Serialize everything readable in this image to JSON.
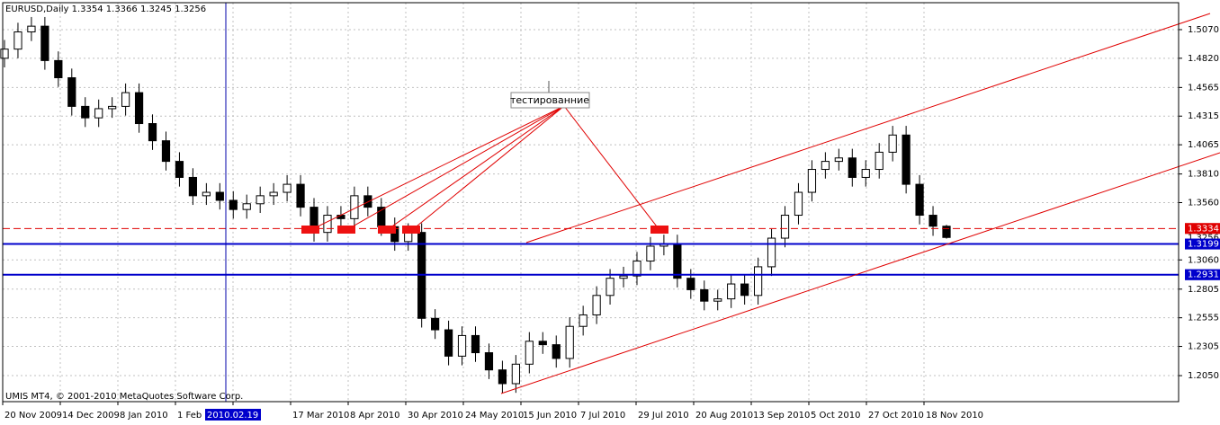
{
  "chart_data": {
    "type": "candlestick",
    "title": "EURUSD,Daily  1.3354 1.3366 1.3245 1.3256",
    "footer": "UMIS MT4, © 2001-2010 MetaQuotes Software Corp.",
    "crosshair_label": "2010.02.19 20:00",
    "annotation": "тестированние",
    "open": [
      1.482,
      1.49,
      1.505,
      1.51,
      1.48,
      1.465,
      1.44,
      1.43,
      1.438,
      1.44,
      1.452,
      1.425,
      1.41,
      1.392,
      1.378,
      1.362,
      1.365,
      1.358,
      1.35,
      1.355,
      1.362,
      1.365,
      1.372,
      1.352,
      1.33,
      1.345,
      1.342,
      1.362,
      1.352,
      1.335,
      1.322,
      1.33,
      1.255,
      1.245,
      1.222,
      1.24,
      1.225,
      1.21,
      1.198,
      1.215,
      1.235,
      1.232,
      1.22,
      1.248,
      1.258,
      1.275,
      1.29,
      1.292,
      1.305,
      1.318,
      1.32,
      1.29,
      1.28,
      1.27,
      1.272,
      1.285,
      1.275,
      1.3,
      1.325,
      1.345,
      1.365,
      1.385,
      1.392,
      1.395,
      1.378,
      1.385,
      1.4,
      1.415,
      1.372,
      1.345,
      1.3354
    ],
    "high": [
      1.498,
      1.513,
      1.518,
      1.518,
      1.488,
      1.473,
      1.448,
      1.446,
      1.448,
      1.46,
      1.46,
      1.433,
      1.418,
      1.4,
      1.386,
      1.373,
      1.373,
      1.366,
      1.363,
      1.37,
      1.373,
      1.38,
      1.38,
      1.36,
      1.353,
      1.353,
      1.37,
      1.37,
      1.36,
      1.343,
      1.338,
      1.338,
      1.263,
      1.253,
      1.248,
      1.248,
      1.233,
      1.218,
      1.223,
      1.243,
      1.243,
      1.24,
      1.256,
      1.266,
      1.283,
      1.298,
      1.3,
      1.313,
      1.326,
      1.328,
      1.328,
      1.298,
      1.288,
      1.28,
      1.293,
      1.293,
      1.308,
      1.333,
      1.353,
      1.373,
      1.393,
      1.4,
      1.403,
      1.403,
      1.393,
      1.408,
      1.423,
      1.423,
      1.38,
      1.353,
      1.3366
    ],
    "low": [
      1.474,
      1.482,
      1.497,
      1.472,
      1.457,
      1.432,
      1.422,
      1.422,
      1.43,
      1.432,
      1.417,
      1.402,
      1.384,
      1.37,
      1.354,
      1.354,
      1.35,
      1.342,
      1.342,
      1.347,
      1.354,
      1.357,
      1.344,
      1.322,
      1.322,
      1.334,
      1.334,
      1.344,
      1.327,
      1.314,
      1.314,
      1.247,
      1.237,
      1.214,
      1.214,
      1.217,
      1.202,
      1.19,
      1.19,
      1.207,
      1.224,
      1.212,
      1.212,
      1.24,
      1.25,
      1.267,
      1.282,
      1.284,
      1.297,
      1.31,
      1.282,
      1.272,
      1.262,
      1.262,
      1.264,
      1.267,
      1.267,
      1.292,
      1.317,
      1.337,
      1.357,
      1.377,
      1.384,
      1.37,
      1.37,
      1.377,
      1.392,
      1.364,
      1.337,
      1.327,
      1.3245
    ],
    "close": [
      1.49,
      1.505,
      1.51,
      1.48,
      1.465,
      1.44,
      1.43,
      1.438,
      1.44,
      1.452,
      1.425,
      1.41,
      1.392,
      1.378,
      1.362,
      1.365,
      1.358,
      1.35,
      1.355,
      1.362,
      1.365,
      1.372,
      1.352,
      1.33,
      1.345,
      1.342,
      1.362,
      1.352,
      1.335,
      1.322,
      1.33,
      1.255,
      1.245,
      1.222,
      1.24,
      1.225,
      1.21,
      1.198,
      1.215,
      1.235,
      1.232,
      1.22,
      1.248,
      1.258,
      1.275,
      1.29,
      1.292,
      1.305,
      1.318,
      1.32,
      1.29,
      1.28,
      1.27,
      1.272,
      1.285,
      1.275,
      1.3,
      1.325,
      1.345,
      1.365,
      1.385,
      1.392,
      1.395,
      1.378,
      1.385,
      1.4,
      1.415,
      1.372,
      1.345,
      1.3354,
      1.3256
    ],
    "ylim": [
      1.1823,
      1.5305
    ],
    "yticks": [
      {
        "value": 1.507,
        "label": "1.5070"
      },
      {
        "value": 1.482,
        "label": "1.4820"
      },
      1.4565,
      1.4315,
      1.4065,
      {
        "value": 1.381,
        "label": "1.3810"
      },
      {
        "value": 1.356,
        "label": "1.3560"
      },
      {
        "value": 1.306,
        "label": "1.3060"
      },
      1.2805,
      1.2555,
      1.2305,
      {
        "value": 1.205,
        "label": "1.2050"
      }
    ],
    "xlabels": [
      "20 Nov 2009",
      "14 Dec 2009",
      "8 Jan 2010",
      "1 Feb 2010",
      null,
      "17 Mar 2010",
      "8 Apr 2010",
      "30 Apr 2010",
      "24 May 2010",
      "15 Jun 2010",
      "7 Jul 2010",
      "29 Jul 2010",
      "20 Aug 2010",
      "13 Sep 2010",
      "5 Oct 2010",
      "27 Oct 2010",
      "18 Nov 2010"
    ],
    "levels": [
      {
        "value": 1.3334,
        "color": "#e00000",
        "style": "dashed"
      },
      {
        "value": 1.3199,
        "color": "#0000cc",
        "style": "solid"
      },
      {
        "value": 1.2931,
        "color": "#0000cc",
        "style": "solid"
      }
    ],
    "last_price": 1.3256,
    "grid": true
  }
}
